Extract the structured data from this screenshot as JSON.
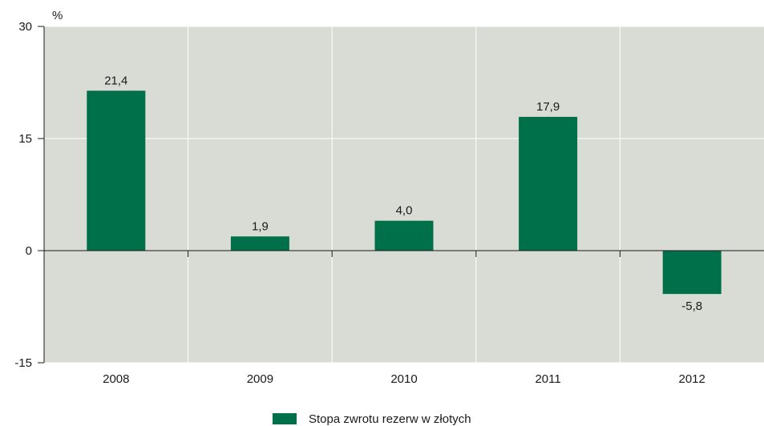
{
  "chart_data": {
    "type": "bar",
    "categories": [
      "2008",
      "2009",
      "2010",
      "2011",
      "2012"
    ],
    "series": [
      {
        "name": "Stopa zwrotu rezerw w złotych",
        "values": [
          21.4,
          1.9,
          4.0,
          17.9,
          -5.8
        ],
        "labels": [
          "21,4",
          "1,9",
          "4,0",
          "17,9",
          "-5,8"
        ],
        "color": "#00704a"
      }
    ],
    "ylabel": "%",
    "ylim": [
      -15,
      30
    ],
    "yticks": [
      30,
      15,
      0,
      -15
    ],
    "grid": true,
    "legend_position": "bottom-center",
    "background_color": "#d9dcd4",
    "gridline_color": "#ffffff"
  }
}
